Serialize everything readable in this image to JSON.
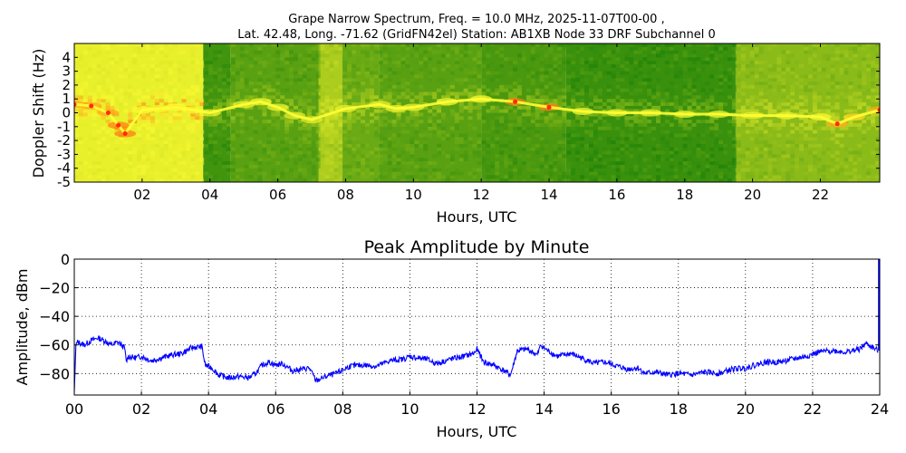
{
  "figure": {
    "title_line1": "Grape Narrow Spectrum, Freq. = 10.0 MHz, 2025-11-07T00-00 ,",
    "title_line2": "Lat.  42.48, Long. -71.62 (GridFN42el) Station: AB1XB Node 33 DRF Subchannel 0"
  },
  "colors": {
    "spectrogram_low": "#0f7a07",
    "spectrogram_mid": "#c9dc22",
    "spectrogram_high": "#ffff33",
    "spectrogram_peak": "#ff2a00",
    "amplitude_line": "#0000ff",
    "grid": "#000000"
  },
  "chart_data": [
    {
      "type": "heatmap",
      "name": "doppler-spectrogram",
      "xlabel": "Hours, UTC",
      "ylabel": "Doppler Shift (Hz)",
      "xlim": [
        0,
        23.75
      ],
      "ylim": [
        -5,
        5
      ],
      "xticks": [
        2,
        4,
        6,
        8,
        10,
        12,
        14,
        16,
        18,
        20,
        22
      ],
      "xtick_labels": [
        "02",
        "04",
        "06",
        "08",
        "10",
        "12",
        "14",
        "16",
        "18",
        "20",
        "22"
      ],
      "yticks": [
        -5,
        -4,
        -3,
        -2,
        -1,
        0,
        1,
        2,
        3,
        4
      ],
      "ytick_labels": [
        "-5",
        "-4",
        "-3",
        "-2",
        "-1",
        "0",
        "1",
        "2",
        "3",
        "4"
      ],
      "background_bands": [
        {
          "start": 0.0,
          "end": 3.8,
          "level": 0.62
        },
        {
          "start": 3.8,
          "end": 4.6,
          "level": 0.12
        },
        {
          "start": 4.6,
          "end": 7.2,
          "level": 0.18
        },
        {
          "start": 7.2,
          "end": 7.9,
          "level": 0.38
        },
        {
          "start": 7.9,
          "end": 9.0,
          "level": 0.22
        },
        {
          "start": 9.0,
          "end": 12.0,
          "level": 0.18
        },
        {
          "start": 12.0,
          "end": 14.5,
          "level": 0.14
        },
        {
          "start": 14.5,
          "end": 19.5,
          "level": 0.1
        },
        {
          "start": 19.5,
          "end": 23.75,
          "level": 0.3
        }
      ],
      "doppler_trace": {
        "x": [
          0.0,
          0.5,
          1.0,
          1.3,
          1.5,
          2.0,
          2.5,
          3.0,
          3.5,
          4.0,
          5.0,
          5.5,
          6.0,
          6.5,
          7.0,
          8.0,
          9.0,
          9.5,
          10.0,
          11.0,
          12.0,
          13.0,
          14.0,
          15.0,
          16.0,
          17.0,
          18.0,
          19.0,
          20.0,
          21.0,
          22.0,
          22.5,
          23.0,
          23.75
        ],
        "y": [
          0.6,
          0.5,
          0.0,
          -0.9,
          -1.5,
          0.2,
          0.3,
          0.4,
          0.2,
          0.0,
          0.6,
          0.8,
          0.4,
          -0.2,
          -0.5,
          0.3,
          0.6,
          0.3,
          0.4,
          0.8,
          1.0,
          0.8,
          0.4,
          0.1,
          0.0,
          0.0,
          -0.1,
          -0.1,
          -0.2,
          -0.2,
          -0.3,
          -0.8,
          -0.3,
          0.2
        ],
        "intensity": [
          0.95,
          0.95,
          0.95,
          1.0,
          1.0,
          0.8,
          0.8,
          0.85,
          0.8,
          0.75,
          0.75,
          0.8,
          0.75,
          0.7,
          0.7,
          0.75,
          0.75,
          0.75,
          0.75,
          0.8,
          0.8,
          1.0,
          1.0,
          0.8,
          0.75,
          0.75,
          0.75,
          0.75,
          0.75,
          0.75,
          0.8,
          0.95,
          0.9,
          0.95
        ]
      }
    },
    {
      "type": "line",
      "name": "peak-amplitude",
      "title": "Peak Amplitude by Minute",
      "xlabel": "Hours, UTC",
      "ylabel": "Amplitude, dBm",
      "xlim": [
        0,
        24
      ],
      "ylim": [
        -95,
        0
      ],
      "grid": true,
      "xticks": [
        0,
        2,
        4,
        6,
        8,
        10,
        12,
        14,
        16,
        18,
        20,
        22,
        24
      ],
      "xtick_labels": [
        "00",
        "02",
        "04",
        "06",
        "08",
        "10",
        "12",
        "14",
        "16",
        "18",
        "20",
        "22",
        "24"
      ],
      "yticks": [
        0,
        -20,
        -40,
        -60,
        -80
      ],
      "ytick_labels": [
        "0",
        "−20",
        "−40",
        "−60",
        "−80"
      ],
      "series": [
        {
          "name": "peak amplitude",
          "x": [
            0.0,
            0.05,
            0.1,
            0.3,
            0.5,
            0.7,
            0.9,
            1.1,
            1.3,
            1.5,
            1.55,
            1.6,
            1.8,
            2.0,
            2.3,
            2.6,
            2.9,
            3.2,
            3.5,
            3.8,
            3.9,
            4.1,
            4.3,
            4.6,
            4.9,
            5.2,
            5.4,
            5.6,
            5.8,
            6.0,
            6.2,
            6.5,
            6.8,
            7.0,
            7.2,
            7.5,
            7.8,
            8.2,
            8.6,
            9.0,
            9.4,
            9.8,
            10.0,
            10.2,
            10.5,
            10.8,
            11.2,
            11.6,
            11.9,
            12.0,
            12.2,
            12.5,
            12.8,
            13.0,
            13.2,
            13.5,
            13.8,
            13.9,
            14.1,
            14.4,
            14.8,
            15.2,
            15.5,
            15.8,
            16.2,
            16.5,
            16.8,
            17.0,
            17.3,
            17.7,
            18.0,
            18.4,
            18.8,
            19.2,
            19.6,
            20.0,
            20.3,
            20.6,
            21.0,
            21.4,
            21.8,
            22.2,
            22.6,
            23.0,
            23.4,
            23.6,
            23.8,
            23.95
          ],
          "values": [
            -93,
            -60,
            -58,
            -60,
            -57,
            -55,
            -57,
            -60,
            -58,
            -62,
            -72,
            -68,
            -69,
            -68,
            -71,
            -69,
            -67,
            -66,
            -62,
            -61,
            -74,
            -76,
            -81,
            -83,
            -82,
            -83,
            -80,
            -74,
            -72,
            -74,
            -73,
            -78,
            -77,
            -76,
            -85,
            -82,
            -80,
            -75,
            -74,
            -75,
            -71,
            -70,
            -68,
            -69,
            -70,
            -73,
            -70,
            -68,
            -66,
            -63,
            -72,
            -74,
            -78,
            -81,
            -64,
            -63,
            -67,
            -60,
            -64,
            -68,
            -66,
            -70,
            -73,
            -72,
            -75,
            -77,
            -76,
            -80,
            -79,
            -81,
            -80,
            -81,
            -79,
            -80,
            -77,
            -76,
            -74,
            -72,
            -72,
            -70,
            -68,
            -65,
            -64,
            -65,
            -63,
            -59,
            -62,
            -64
          ]
        }
      ]
    }
  ]
}
